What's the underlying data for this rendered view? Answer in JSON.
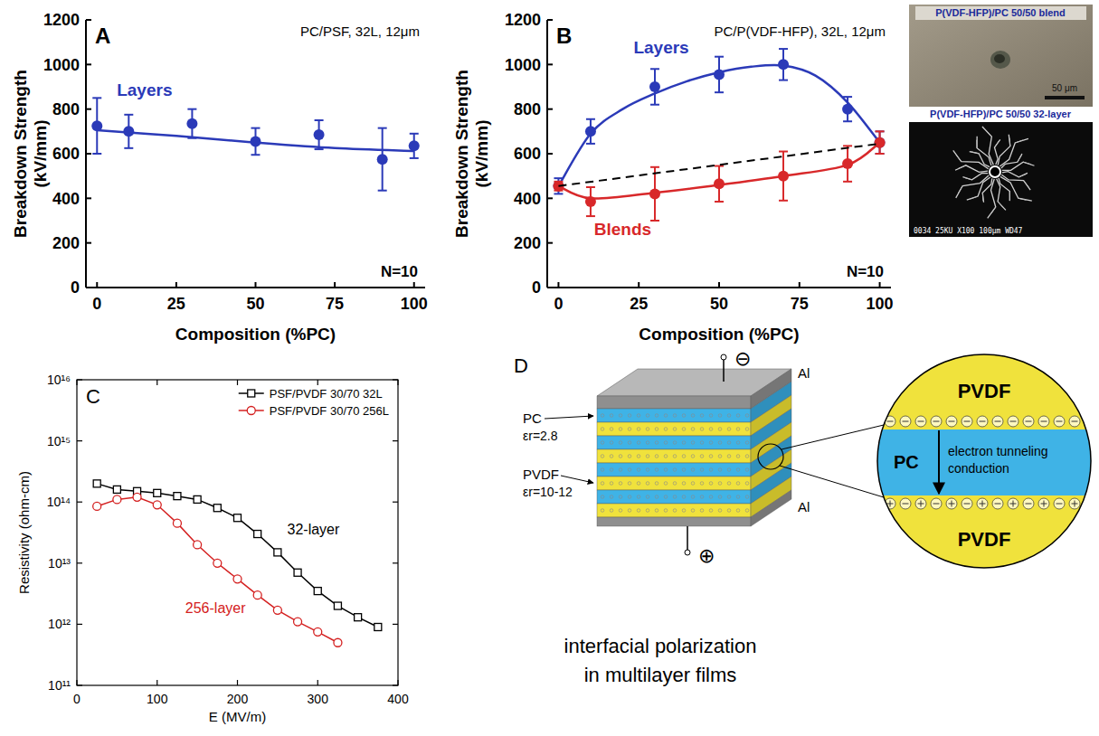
{
  "chart_data": [
    {
      "type": "line",
      "panel_label": "A",
      "title": "PC/PSF, 32L, 12μm",
      "xlabel": "Composition (%PC)",
      "ylabel": [
        "Breakdown Strength",
        "(kV/mm)"
      ],
      "x": [
        0,
        10,
        30,
        50,
        70,
        90,
        100
      ],
      "xlim": [
        -3.5,
        103.5
      ],
      "xticks": [
        0,
        25,
        50,
        75,
        100
      ],
      "ylim": [
        0,
        1200
      ],
      "yticks": [
        0,
        200,
        400,
        600,
        800,
        1000,
        1200
      ],
      "annotations": [
        "N=10"
      ],
      "series": [
        {
          "name": "Layers",
          "color": "#2b3ab8",
          "marker": "circle",
          "values": [
            725,
            700,
            735,
            655,
            685,
            575,
            635
          ],
          "errors": [
            125,
            75,
            65,
            60,
            65,
            140,
            55
          ],
          "fit": {
            "x": [
              0,
              25,
              50,
              75,
              100
            ],
            "values": [
              705,
              680,
              650,
              625,
              612
            ]
          }
        }
      ]
    },
    {
      "type": "line",
      "panel_label": "B",
      "title": "PC/P(VDF-HFP), 32L, 12μm",
      "xlabel": "Composition (%PC)",
      "ylabel": [
        "Breakdown Strength",
        "(kV/mm)"
      ],
      "x": [
        0,
        10,
        30,
        50,
        70,
        90,
        100
      ],
      "xlim": [
        -3.5,
        103.5
      ],
      "xticks": [
        0,
        25,
        50,
        75,
        100
      ],
      "ylim": [
        0,
        1200
      ],
      "yticks": [
        0,
        200,
        400,
        600,
        800,
        1000,
        1200
      ],
      "annotations": [
        "N=10"
      ],
      "series": [
        {
          "name": "Layers",
          "color": "#2b3ab8",
          "marker": "circle",
          "values": [
            455,
            700,
            900,
            955,
            1000,
            800,
            650
          ],
          "errors": [
            35,
            55,
            80,
            80,
            70,
            55,
            50
          ],
          "fit": {
            "x": [
              0,
              10,
              20,
              30,
              40,
              50,
              60,
              70,
              80,
              90,
              100
            ],
            "values": [
              455,
              690,
              800,
              870,
              925,
              965,
              990,
              995,
              950,
              830,
              650
            ]
          }
        },
        {
          "name": "Blends",
          "color": "#d8282a",
          "marker": "circle",
          "values": [
            455,
            385,
            420,
            465,
            500,
            555,
            650
          ],
          "errors": [
            20,
            65,
            120,
            80,
            110,
            80,
            50
          ],
          "fit": {
            "x": [
              0,
              10,
              30,
              50,
              70,
              90,
              100
            ],
            "values": [
              455,
              400,
              425,
              460,
              500,
              550,
              650
            ]
          }
        },
        {
          "type": "line",
          "line_style": "dashed",
          "color": "#000000",
          "x": [
            0,
            100
          ],
          "values": [
            455,
            645
          ]
        }
      ]
    },
    {
      "type": "line",
      "log": "y",
      "panel_label": "C",
      "xlabel": "E (MV/m)",
      "ylabel": "Resistivity (ohm-cm)",
      "xlim": [
        0,
        400
      ],
      "xticks": [
        0,
        100,
        200,
        300,
        400
      ],
      "ylim": [
        100000000000.0,
        1e+16
      ],
      "yticks": [
        {
          "value": 100000000000.0,
          "label": "10¹¹"
        },
        {
          "value": 1000000000000.0,
          "label": "10¹²"
        },
        {
          "value": 10000000000000.0,
          "label": "10¹³"
        },
        {
          "value": 100000000000000.0,
          "label": "10¹⁴"
        },
        {
          "value": 1000000000000000.0,
          "label": "10¹⁵"
        },
        {
          "value": 1e+16,
          "label": "10¹⁶"
        }
      ],
      "legend": "upper right",
      "annotations": [
        "32-layer",
        "256-layer"
      ],
      "series": [
        {
          "name": "PSF/PVDF 30/70 32L",
          "color": "#000000",
          "marker": "open-square",
          "x": [
            25,
            50,
            75,
            100,
            125,
            150,
            175,
            200,
            225,
            250,
            275,
            300,
            325,
            350,
            375
          ],
          "values": [
            200000000000000.0,
            160000000000000.0,
            150000000000000.0,
            140000000000000.0,
            125000000000000.0,
            110000000000000.0,
            80000000000000.0,
            55000000000000.0,
            30000000000000.0,
            15000000000000.0,
            7000000000000.0,
            3500000000000.0,
            2000000000000.0,
            1300000000000.0,
            900000000000.0
          ]
        },
        {
          "name": "PSF/PVDF 30/70 256L",
          "color": "#d42020",
          "marker": "open-circle",
          "x": [
            25,
            50,
            75,
            100,
            125,
            150,
            175,
            200,
            225,
            250,
            275,
            300,
            325
          ],
          "values": [
            85000000000000.0,
            110000000000000.0,
            120000000000000.0,
            90000000000000.0,
            45000000000000.0,
            20000000000000.0,
            10000000000000.0,
            5500000000000.0,
            3000000000000.0,
            1700000000000.0,
            1100000000000.0,
            750000000000.0,
            500000000000.0
          ]
        }
      ]
    }
  ],
  "photos": [
    {
      "label": "P(VDF-HFP)/PC 50/50 blend",
      "scale_bar": "50 μm"
    },
    {
      "label": "P(VDF-HFP)/PC 50/50 32-layer",
      "info": "0034  25KU  X100  100μm  WD47"
    }
  ],
  "diagram": {
    "panel_label": "D",
    "layers": [
      {
        "name": "PC",
        "permittivity": "εr=2.8"
      },
      {
        "name": "PVDF",
        "permittivity": "εr=10-12"
      }
    ],
    "electrodes": [
      "Al",
      "Al"
    ],
    "terminals": [
      "⊖",
      "⊕"
    ],
    "caption": [
      "interfacial polarization",
      "in multilayer films"
    ],
    "zoom": {
      "top": "PVDF",
      "middle": "PC",
      "bottom": "PVDF",
      "mechanism": [
        "electron tunneling",
        "conduction"
      ]
    }
  }
}
